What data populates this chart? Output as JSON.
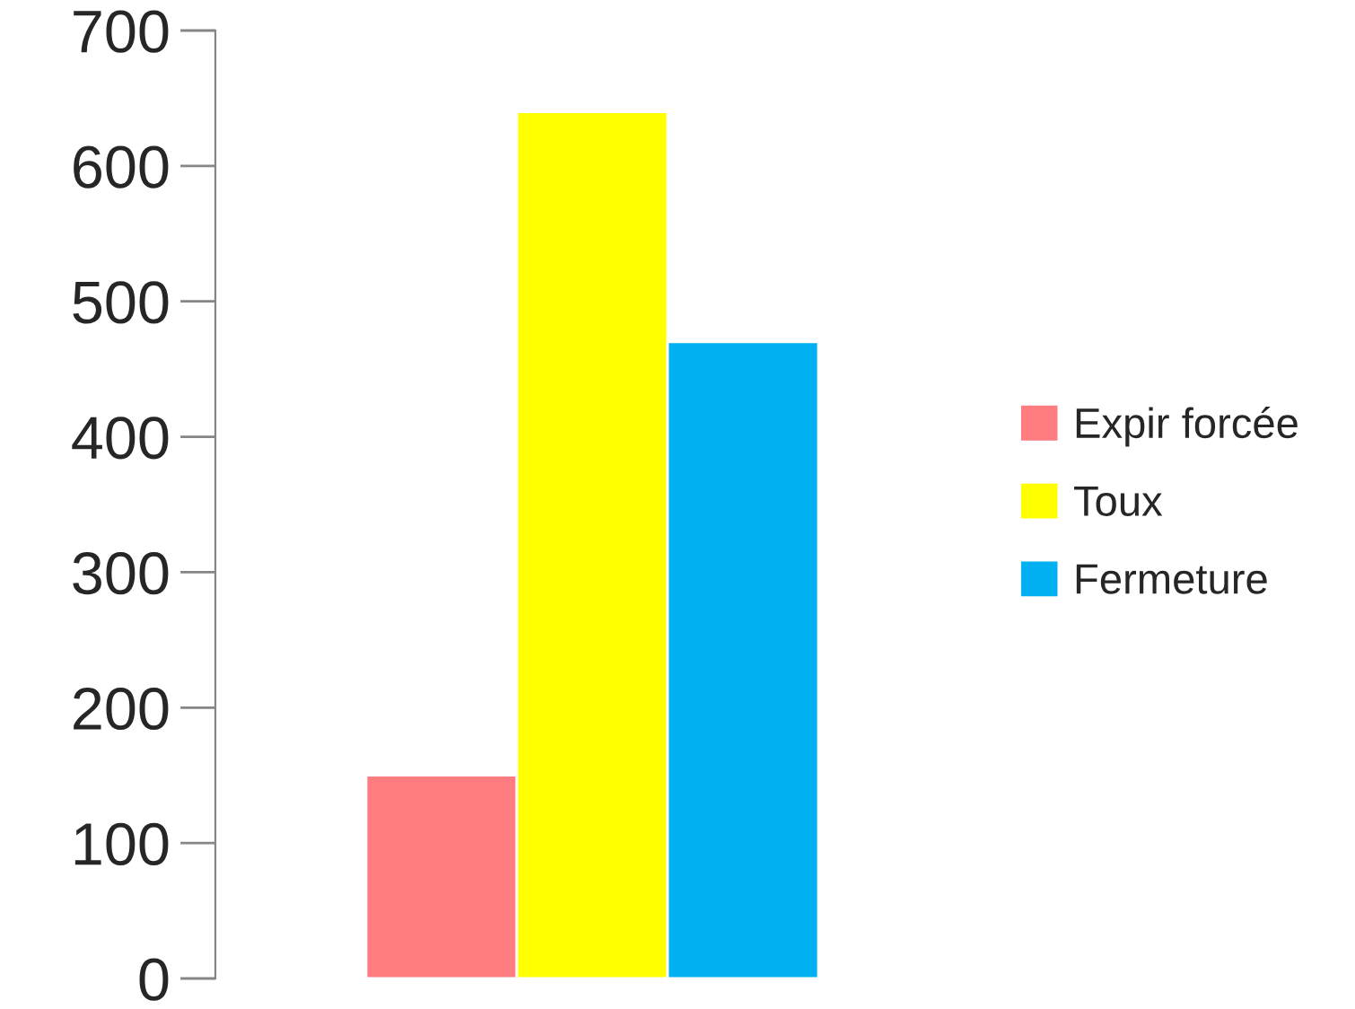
{
  "chart_data": {
    "type": "bar",
    "categories": [
      null
    ],
    "series": [
      {
        "name": "Expir forcée",
        "color": "#ff7c80",
        "values": [
          150
        ]
      },
      {
        "name": "Toux",
        "color": "#ffff00",
        "values": [
          640
        ]
      },
      {
        "name": "Fermeture",
        "color": "#00b0f0",
        "values": [
          470
        ]
      }
    ],
    "ylim": [
      0,
      700
    ],
    "yticks": [
      0,
      100,
      200,
      300,
      400,
      500,
      600,
      700
    ],
    "grid": false,
    "legend": "right",
    "tick_labels": "y"
  }
}
